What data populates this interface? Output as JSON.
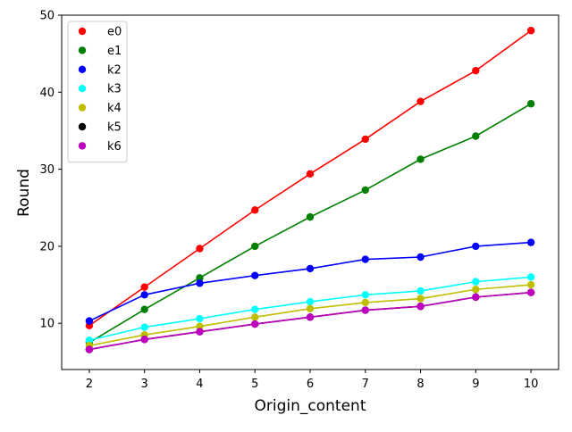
{
  "chart_data": {
    "type": "line",
    "xlabel": "Origin_content",
    "ylabel": "Round",
    "x": [
      2,
      3,
      4,
      5,
      6,
      7,
      8,
      9,
      10
    ],
    "xlim": [
      1.5,
      10.5
    ],
    "ylim": [
      4,
      50
    ],
    "xticks": [
      2,
      3,
      4,
      5,
      6,
      7,
      8,
      9,
      10
    ],
    "yticks": [
      10,
      20,
      30,
      40,
      50
    ],
    "grid": false,
    "legend_position": "top-left",
    "series": [
      {
        "name": "e0",
        "color": "#ff0000",
        "values": [
          9.7,
          14.7,
          19.7,
          24.7,
          29.4,
          33.9,
          38.8,
          42.8,
          48.0
        ]
      },
      {
        "name": "e1",
        "color": "#008000",
        "values": [
          7.5,
          11.8,
          15.9,
          20.0,
          23.8,
          27.3,
          31.3,
          34.3,
          38.5
        ]
      },
      {
        "name": "k2",
        "color": "#0000ff",
        "values": [
          10.3,
          13.7,
          15.2,
          16.2,
          17.1,
          18.3,
          18.6,
          20.0,
          20.5
        ]
      },
      {
        "name": "k3",
        "color": "#00ffff",
        "values": [
          7.8,
          9.5,
          10.6,
          11.8,
          12.8,
          13.7,
          14.2,
          15.4,
          16.0
        ]
      },
      {
        "name": "k4",
        "color": "#bfbf00",
        "values": [
          7.1,
          8.5,
          9.6,
          10.8,
          11.9,
          12.7,
          13.2,
          14.4,
          15.0
        ]
      },
      {
        "name": "k5",
        "color": "#000000",
        "values": [
          6.6,
          7.9,
          8.9,
          9.9,
          10.8,
          11.7,
          12.2,
          13.4,
          14.0
        ]
      },
      {
        "name": "k6",
        "color": "#bf00bf",
        "values": [
          6.6,
          7.9,
          8.9,
          9.9,
          10.8,
          11.7,
          12.2,
          13.4,
          14.0
        ]
      }
    ]
  }
}
